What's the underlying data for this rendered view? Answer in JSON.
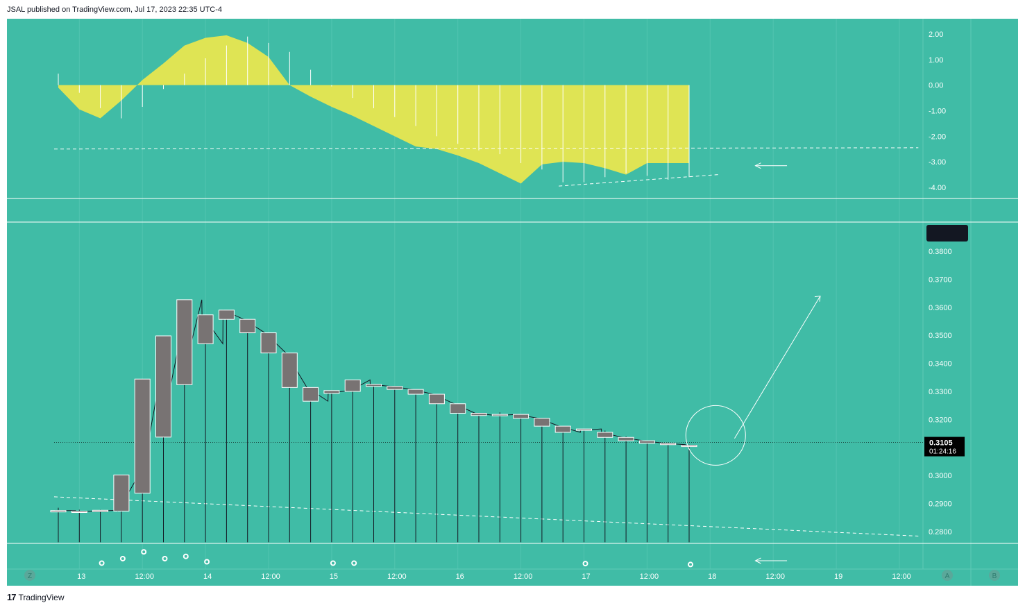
{
  "header": {
    "text": "JSAL published on TradingView.com, Jul 17, 2023 22:35 UTC-4"
  },
  "footer": {
    "logo": "17",
    "brand": "TradingView"
  },
  "colors": {
    "background": "#40bca6",
    "oscillator_fill": "#dfe454",
    "candle_body": "#787373",
    "price_badge": "#131722",
    "text": "#131722",
    "grid": "#5fcab7",
    "white": "#ffffff"
  },
  "chart_data": [
    {
      "type": "area",
      "panel": "oscillator",
      "y_ticks": [
        "2.00",
        "1.00",
        "0.00",
        "-1.00",
        "-2.00",
        "-3.00",
        "-4.00"
      ],
      "ylim": [
        -4.5,
        2.6
      ],
      "x": [
        0,
        1,
        2,
        3,
        4,
        5,
        6,
        7,
        8,
        9,
        10,
        11,
        12,
        13,
        14,
        15,
        16,
        17,
        18,
        19,
        20,
        21,
        22,
        23,
        24,
        25,
        26,
        27,
        28,
        29,
        30
      ],
      "values": [
        -0.1,
        -0.95,
        -1.3,
        -0.6,
        0.2,
        0.85,
        1.55,
        1.85,
        1.95,
        1.65,
        1.1,
        0.0,
        -0.45,
        -0.85,
        -1.2,
        -1.6,
        -2.0,
        -2.4,
        -2.5,
        -2.75,
        -3.05,
        -3.45,
        -3.85,
        -3.1,
        -3.0,
        -3.05,
        -3.25,
        -3.5,
        -3.05,
        -3.05,
        -3.05
      ],
      "histogram": [
        0.45,
        -0.3,
        -0.9,
        -1.3,
        -0.85,
        -0.15,
        0.45,
        1.05,
        1.55,
        1.9,
        1.65,
        1.3,
        0.6,
        -0.05,
        -0.5,
        -0.9,
        -1.25,
        -1.6,
        -2.0,
        -2.3,
        -2.55,
        -2.7,
        -3.05,
        -3.3,
        -3.8,
        -3.8,
        -3.6,
        -3.45,
        -3.55,
        -3.7,
        -3.6
      ],
      "overlays": [
        {
          "kind": "dashed-line",
          "x": [
            0,
            41
          ],
          "y": [
            -2.5,
            -2.45
          ]
        },
        {
          "kind": "dashed-line",
          "x": [
            24,
            31.5
          ],
          "y": [
            -3.95,
            -3.5
          ]
        },
        {
          "kind": "arrow-left",
          "x": [
            31.5,
            33.5
          ],
          "y": [
            -3.15,
            -3.15
          ]
        }
      ]
    },
    {
      "type": "candlestick",
      "panel": "price",
      "y_ticks": [
        "0.3800",
        "0.3700",
        "0.3600",
        "0.3500",
        "0.3400",
        "0.3300",
        "0.3200",
        "0.3000",
        "0.2900",
        "0.2800"
      ],
      "ylim": [
        0.2762,
        0.3902
      ],
      "x_ticks": [
        {
          "x": 1,
          "label": "13"
        },
        {
          "x": 4,
          "label": "12:00"
        },
        {
          "x": 7,
          "label": "14"
        },
        {
          "x": 10,
          "label": "12:00"
        },
        {
          "x": 13,
          "label": "15"
        },
        {
          "x": 16,
          "label": "12:00"
        },
        {
          "x": 19,
          "label": "16"
        },
        {
          "x": 22,
          "label": "12:00"
        },
        {
          "x": 25,
          "label": "17"
        },
        {
          "x": 28,
          "label": "12:00"
        },
        {
          "x": 31,
          "label": "18"
        },
        {
          "x": 34,
          "label": "12:00"
        },
        {
          "x": 37,
          "label": "19"
        },
        {
          "x": 40,
          "label": "12:00"
        }
      ],
      "candles": [
        {
          "x": 0,
          "open": 0.2873,
          "close": 0.2875
        },
        {
          "x": 1,
          "open": 0.2872,
          "close": 0.2873
        },
        {
          "x": 2,
          "open": 0.2873,
          "close": 0.2876
        },
        {
          "x": 3,
          "open": 0.2873,
          "close": 0.3002
        },
        {
          "x": 4,
          "open": 0.2937,
          "close": 0.3344
        },
        {
          "x": 5,
          "open": 0.3137,
          "close": 0.3498
        },
        {
          "x": 6,
          "open": 0.3324,
          "close": 0.3627
        },
        {
          "x": 7,
          "open": 0.3573,
          "close": 0.347
        },
        {
          "x": 8,
          "open": 0.359,
          "close": 0.3557
        },
        {
          "x": 9,
          "open": 0.3557,
          "close": 0.3509
        },
        {
          "x": 10,
          "open": 0.3509,
          "close": 0.3437
        },
        {
          "x": 11,
          "open": 0.3437,
          "close": 0.3314
        },
        {
          "x": 12,
          "open": 0.3314,
          "close": 0.3265
        },
        {
          "x": 13,
          "open": 0.3293,
          "close": 0.3303
        },
        {
          "x": 14,
          "open": 0.33,
          "close": 0.3341
        },
        {
          "x": 15,
          "open": 0.3325,
          "close": 0.3318
        },
        {
          "x": 16,
          "open": 0.3318,
          "close": 0.3307
        },
        {
          "x": 17,
          "open": 0.3307,
          "close": 0.329
        },
        {
          "x": 18,
          "open": 0.329,
          "close": 0.3256
        },
        {
          "x": 19,
          "open": 0.3256,
          "close": 0.3222
        },
        {
          "x": 20,
          "open": 0.3222,
          "close": 0.3214
        },
        {
          "x": 21,
          "open": 0.3214,
          "close": 0.3218
        },
        {
          "x": 22,
          "open": 0.3218,
          "close": 0.3204
        },
        {
          "x": 23,
          "open": 0.3204,
          "close": 0.3176
        },
        {
          "x": 24,
          "open": 0.3176,
          "close": 0.3154
        },
        {
          "x": 25,
          "open": 0.3161,
          "close": 0.3166
        },
        {
          "x": 26,
          "open": 0.3154,
          "close": 0.3136
        },
        {
          "x": 27,
          "open": 0.3136,
          "close": 0.3124
        },
        {
          "x": 28,
          "open": 0.3124,
          "close": 0.3115
        },
        {
          "x": 29,
          "open": 0.3115,
          "close": 0.311
        },
        {
          "x": 30,
          "open": 0.3108,
          "close": 0.3105
        }
      ],
      "wicks": [
        {
          "x": 0,
          "high": 0.2885,
          "low": 0.2762
        },
        {
          "x": 1,
          "high": 0.2878,
          "low": 0.2762
        },
        {
          "x": 2,
          "high": 0.2878,
          "low": 0.2762
        },
        {
          "x": 3,
          "high": 0.3002,
          "low": 0.2762
        },
        {
          "x": 4,
          "high": 0.3018,
          "low": 0.2762
        },
        {
          "x": 5,
          "high": 0.3362,
          "low": 0.2762
        },
        {
          "x": 6,
          "high": 0.3375,
          "low": 0.2762
        },
        {
          "x": 7,
          "high": 0.3497,
          "low": 0.2762
        },
        {
          "x": 8,
          "high": 0.3577,
          "low": 0.2762
        },
        {
          "x": 9,
          "high": 0.3537,
          "low": 0.2762
        },
        {
          "x": 10,
          "high": 0.3478,
          "low": 0.2762
        },
        {
          "x": 11,
          "high": 0.3398,
          "low": 0.2762
        },
        {
          "x": 12,
          "high": 0.3285,
          "low": 0.2762
        },
        {
          "x": 13,
          "high": 0.3303,
          "low": 0.2762
        },
        {
          "x": 14,
          "high": 0.3341,
          "low": 0.2762
        },
        {
          "x": 15,
          "high": 0.3318,
          "low": 0.2762
        },
        {
          "x": 16,
          "high": 0.3312,
          "low": 0.2762
        },
        {
          "x": 17,
          "high": 0.33,
          "low": 0.2762
        },
        {
          "x": 18,
          "high": 0.3275,
          "low": 0.2762
        },
        {
          "x": 19,
          "high": 0.3238,
          "low": 0.2762
        },
        {
          "x": 20,
          "high": 0.3222,
          "low": 0.2762
        },
        {
          "x": 21,
          "high": 0.3225,
          "low": 0.2762
        },
        {
          "x": 22,
          "high": 0.3218,
          "low": 0.2762
        },
        {
          "x": 23,
          "high": 0.3204,
          "low": 0.2762
        },
        {
          "x": 24,
          "high": 0.3176,
          "low": 0.2762
        },
        {
          "x": 25,
          "high": 0.3166,
          "low": 0.2762
        },
        {
          "x": 26,
          "high": 0.316,
          "low": 0.2762
        },
        {
          "x": 27,
          "high": 0.314,
          "low": 0.2762
        },
        {
          "x": 28,
          "high": 0.3124,
          "low": 0.2762
        },
        {
          "x": 29,
          "high": 0.3118,
          "low": 0.2762
        },
        {
          "x": 30,
          "high": 0.311,
          "low": 0.2762
        }
      ],
      "last_price": "0.3105",
      "countdown": "01:24:16",
      "overlays": [
        {
          "kind": "dashed-line",
          "x": [
            0,
            41
          ],
          "y": [
            0.2924,
            0.2784
          ]
        },
        {
          "kind": "dotted-line",
          "x": [
            0,
            41
          ],
          "y": [
            0.3113,
            0.3113
          ]
        },
        {
          "kind": "circle",
          "x": 31,
          "y": 0.3143
        },
        {
          "kind": "arrow-line",
          "x": [
            31.5,
            36.5
          ],
          "y": [
            0.312,
            0.364
          ]
        }
      ]
    },
    {
      "type": "scatter",
      "panel": "signals",
      "x": [
        2,
        3,
        4,
        5,
        6,
        7,
        13,
        14,
        25,
        30
      ],
      "values": [
        0.35,
        0.85,
        1.6,
        0.85,
        1.1,
        0.5,
        0.35,
        0.35,
        0.3,
        0.2
      ],
      "ylim": [
        0,
        2
      ],
      "overlays": [
        {
          "kind": "arrow-left",
          "x": [
            31.5,
            33.5
          ],
          "y": [
            0.65,
            0.65
          ]
        }
      ]
    }
  ],
  "scale_buttons": {
    "left": "Z",
    "right1": "A",
    "right2": "B"
  }
}
